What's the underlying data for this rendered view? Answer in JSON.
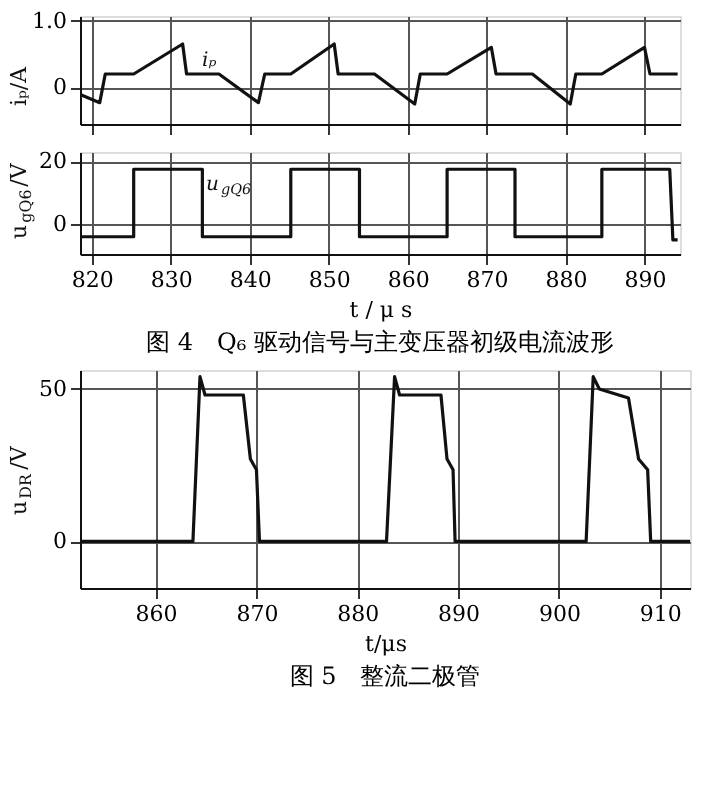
{
  "chart_data": [
    {
      "type": "line",
      "ylabel": "iₚ/A",
      "xlim": [
        818.5,
        894.5
      ],
      "xticks": [
        820,
        830,
        840,
        850,
        860,
        870,
        880,
        890
      ],
      "ylim": [
        -0.55,
        1.07
      ],
      "yticks": [
        0,
        {
          "value": 1,
          "label": "1.0"
        }
      ],
      "grid": true,
      "tick_labels": "y",
      "annotations": [
        "iₚ"
      ],
      "series": [
        {
          "color": "#111111",
          "x": [
            818.6,
            821.0,
            821.7,
            825.3,
            831.5,
            832.0,
            836.1,
            841.1,
            841.9,
            845.2,
            850.7,
            851.2,
            855.8,
            860.9,
            861.6,
            865.0,
            870.6,
            871.2,
            875.8,
            880.6,
            881.3,
            884.6,
            890.0,
            890.7,
            894.2
          ],
          "values": [
            -0.11,
            -0.23,
            0.2,
            0.2,
            0.65,
            0.2,
            0.2,
            -0.23,
            0.2,
            0.2,
            0.65,
            0.2,
            0.2,
            -0.25,
            0.2,
            0.2,
            0.6,
            0.2,
            0.2,
            -0.25,
            0.2,
            0.2,
            0.6,
            0.2,
            0.2
          ]
        }
      ]
    },
    {
      "type": "line",
      "title": "图 4　Q₆ 驱动信号与主变压器初级电流波形",
      "xlabel": "t / μ s",
      "ylabel": "u$_{gQ6}$/V",
      "xlim": [
        818.5,
        894.5
      ],
      "xticks": [
        820,
        830,
        840,
        850,
        860,
        870,
        880,
        890
      ],
      "ylim": [
        -9.5,
        23
      ],
      "yticks": [
        0,
        20
      ],
      "grid": true,
      "annotations": [
        "u$_{gQ6}$"
      ],
      "series": [
        {
          "color": "#111111",
          "x": [
            818.6,
            825.3,
            825.3,
            834.0,
            834.0,
            845.2,
            845.2,
            853.9,
            853.9,
            865.0,
            865.0,
            873.6,
            873.6,
            884.6,
            884.6,
            893.2,
            893.6,
            894.2
          ],
          "values": [
            -4,
            -4,
            17.5,
            17.5,
            -4,
            -4,
            17.5,
            17.5,
            -4,
            -4,
            17.5,
            17.5,
            -4,
            -4,
            17.5,
            17.5,
            -5,
            -5
          ]
        }
      ]
    },
    {
      "type": "line",
      "title": "图 5　整流二极管",
      "xlabel": "t/μs",
      "ylabel": "u$_{DR}$/V",
      "xlim": [
        852.5,
        913
      ],
      "xticks": [
        860,
        870,
        880,
        890,
        900,
        910
      ],
      "ylim": [
        -15.3,
        56.2
      ],
      "yticks": [
        0,
        50
      ],
      "grid": true,
      "series": [
        {
          "color": "#111111",
          "x": [
            852.5,
            863.7,
            864.4,
            864.9,
            868.7,
            869.4,
            870.0,
            870.3,
            882.9,
            883.7,
            884.2,
            888.3,
            888.9,
            889.5,
            889.7,
            902.7,
            903.4,
            904.0,
            906.9,
            907.9,
            908.8,
            909.1,
            913
          ],
          "values": [
            0,
            0,
            54,
            48,
            48,
            27,
            23.5,
            0,
            0,
            54,
            48,
            48,
            27,
            23.5,
            0,
            0,
            54,
            50,
            47,
            27,
            23.5,
            0,
            0
          ]
        }
      ]
    }
  ]
}
